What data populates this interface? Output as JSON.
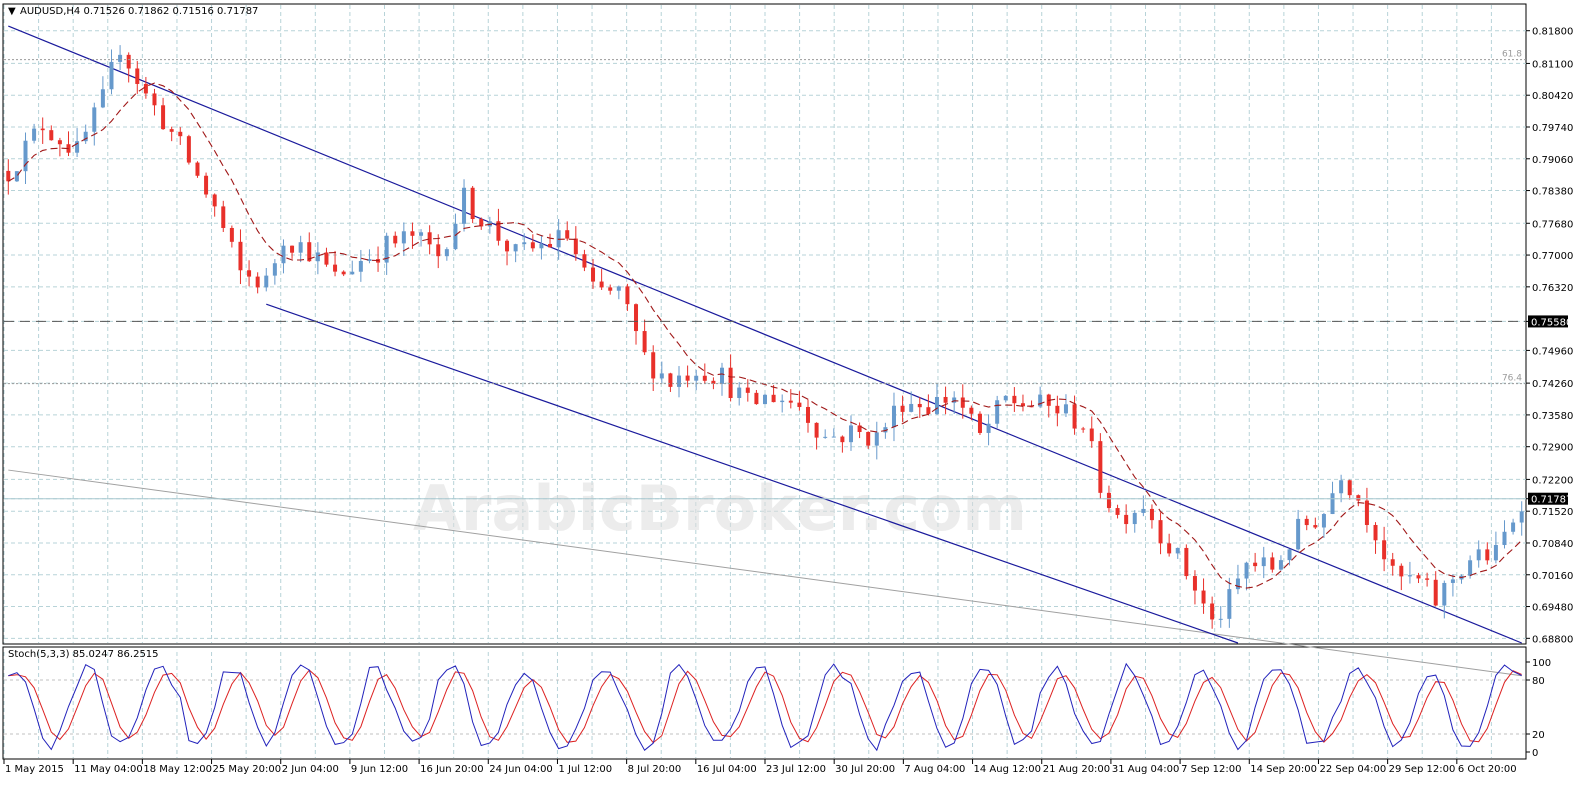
{
  "header": {
    "title": "AUDUSD,H4  0.71526 0.71862 0.71516 0.71787"
  },
  "colors": {
    "bull": "#6699cc",
    "bear": "#e8302a",
    "ma": "#a01818",
    "channel": "#1a1a9c",
    "grid": "#b7d3d8",
    "trend_gray": "#a0a0a0",
    "stoch_main": "#2222bb",
    "stoch_signal": "#dd2222",
    "label_bg": "#000000",
    "label_fg": "#ffffff"
  },
  "chart_data": [
    {
      "type": "candlestick",
      "symbol": "AUDUSD",
      "timeframe": "H4",
      "ohlc_last": {
        "open": 0.71526,
        "high": 0.71862,
        "low": 0.71516,
        "close": 0.71787
      },
      "ylim": [
        0.687,
        0.8235
      ],
      "y_ticks": [
        "0.81800",
        "0.81100",
        "0.80420",
        "0.79740",
        "0.79060",
        "0.78380",
        "0.77680",
        "0.77000",
        "0.76320",
        "0.75580",
        "0.74960",
        "0.74260",
        "0.73580",
        "0.72900",
        "0.72200",
        "0.71787",
        "0.71520",
        "0.70840",
        "0.70160",
        "0.69480",
        "0.68800"
      ],
      "highlighted_levels": [
        {
          "label": "0.75580",
          "value": 0.7558,
          "style": "dashed"
        },
        {
          "label": "0.71787",
          "value": 0.71787,
          "style": "current"
        }
      ],
      "fib_levels": [
        {
          "label": "61.8",
          "value": 0.8118
        },
        {
          "label": "76.4",
          "value": 0.7425
        }
      ],
      "x_labels": [
        "1 May 2015",
        "11 May 04:00",
        "18 May 12:00",
        "25 May 20:00",
        "2 Jun 04:00",
        "9 Jun 12:00",
        "16 Jun 20:00",
        "24 Jun 04:00",
        "1 Jul 12:00",
        "8 Jul 20:00",
        "16 Jul 04:00",
        "23 Jul 12:00",
        "30 Jul 20:00",
        "7 Aug 04:00",
        "14 Aug 12:00",
        "21 Aug 20:00",
        "31 Aug 04:00",
        "7 Sep 12:00",
        "14 Sep 20:00",
        "22 Sep 04:00",
        "29 Sep 12:00",
        "6 Oct 20:00"
      ],
      "price_path": [
        [
          0,
          0.788
        ],
        [
          4,
          0.798
        ],
        [
          8,
          0.792
        ],
        [
          11,
          0.803
        ],
        [
          13,
          0.815
        ],
        [
          16,
          0.804
        ],
        [
          18,
          0.799
        ],
        [
          21,
          0.79
        ],
        [
          24,
          0.78
        ],
        [
          27,
          0.766
        ],
        [
          30,
          0.764
        ],
        [
          32,
          0.774
        ],
        [
          35,
          0.771
        ],
        [
          38,
          0.765
        ],
        [
          41,
          0.769
        ],
        [
          44,
          0.772
        ],
        [
          47,
          0.774
        ],
        [
          50,
          0.77
        ],
        [
          53,
          0.782
        ],
        [
          56,
          0.776
        ],
        [
          59,
          0.77
        ],
        [
          62,
          0.772
        ],
        [
          65,
          0.774
        ],
        [
          68,
          0.762
        ],
        [
          71,
          0.762
        ],
        [
          74,
          0.748
        ],
        [
          77,
          0.743
        ],
        [
          80,
          0.746
        ],
        [
          83,
          0.744
        ],
        [
          86,
          0.738
        ],
        [
          89,
          0.74
        ],
        [
          92,
          0.738
        ],
        [
          95,
          0.731
        ],
        [
          98,
          0.732
        ],
        [
          101,
          0.731
        ],
        [
          104,
          0.739
        ],
        [
          107,
          0.738
        ],
        [
          110,
          0.74
        ],
        [
          113,
          0.731
        ],
        [
          116,
          0.739
        ],
        [
          119,
          0.738
        ],
        [
          122,
          0.737
        ],
        [
          125,
          0.734
        ],
        [
          127,
          0.721
        ],
        [
          129,
          0.714
        ],
        [
          132,
          0.717
        ],
        [
          135,
          0.708
        ],
        [
          138,
          0.699
        ],
        [
          140,
          0.691
        ],
        [
          142,
          0.696
        ],
        [
          144,
          0.704
        ],
        [
          147,
          0.703
        ],
        [
          150,
          0.711
        ],
        [
          153,
          0.715
        ],
        [
          155,
          0.724
        ],
        [
          157,
          0.718
        ],
        [
          159,
          0.711
        ],
        [
          161,
          0.701
        ],
        [
          164,
          0.7
        ],
        [
          166,
          0.696
        ],
        [
          168,
          0.701
        ],
        [
          170,
          0.705
        ],
        [
          173,
          0.706
        ],
        [
          176,
          0.7179
        ]
      ],
      "ma_offset": 0.003,
      "channel_upper": [
        [
          0,
          0.819
        ],
        [
          176,
          0.687
        ]
      ],
      "channel_lower": [
        [
          30,
          0.7595
        ],
        [
          143,
          0.687
        ]
      ],
      "gray_trend": [
        [
          0,
          0.724
        ],
        [
          176,
          0.68
        ]
      ]
    },
    {
      "type": "line",
      "name": "Stoch(5,3,3)",
      "title": "Stoch(5,3,3) 85.0247 86.2515",
      "main_value": 85.0247,
      "signal_value": 86.2515,
      "ylim": [
        0,
        100
      ],
      "y_ticks": [
        "100",
        "80",
        "20",
        "0"
      ],
      "levels": [
        20,
        80
      ]
    }
  ],
  "watermark": "ArabicBroker.com"
}
